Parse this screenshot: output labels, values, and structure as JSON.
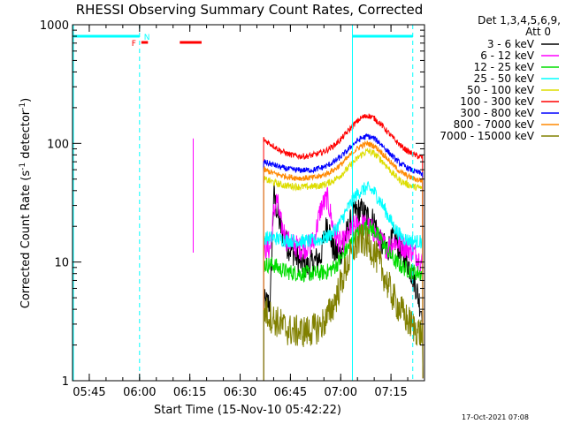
{
  "chart_data": {
    "type": "line",
    "title": "RHESSI Observing Summary Count Rates, Corrected",
    "xlabel": "Start Time (15-Nov-10 05:42:22)",
    "ylabel": "Corrected Count Rate (s",
    "ylabel_sup1": "-1",
    "ylabel_mid": " detector",
    "ylabel_sup2": "-1",
    "ylabel_end": ")",
    "yscale": "log",
    "ylim": [
      1,
      1000
    ],
    "xlim": [
      "05:40",
      "07:25"
    ],
    "x_ticks": [
      "05:45",
      "06:00",
      "06:15",
      "06:30",
      "06:45",
      "07:00",
      "07:15"
    ],
    "x_tick_minutes": [
      5,
      20,
      35,
      50,
      65,
      80,
      95
    ],
    "y_ticks": [
      "1",
      "10",
      "100",
      "1000"
    ],
    "y_tick_values": [
      1,
      10,
      100,
      1000
    ],
    "legend": {
      "header1": "Det 1,3,4,5,6,9,",
      "header2": "Att 0",
      "placement": "right",
      "entries": [
        {
          "label": "3 - 6 keV",
          "color": "#000000"
        },
        {
          "label": "6 - 12 keV",
          "color": "#ff00ff"
        },
        {
          "label": "12 - 25 keV",
          "color": "#00dd00"
        },
        {
          "label": "25 - 50 keV",
          "color": "#00ffff"
        },
        {
          "label": "50 - 100 keV",
          "color": "#dddd00"
        },
        {
          "label": "100 - 300 keV",
          "color": "#ff0000"
        },
        {
          "label": "300 - 800 keV",
          "color": "#0000ff"
        },
        {
          "label": "800 - 7000 keV",
          "color": "#ff8800"
        },
        {
          "label": "7000 - 15000 keV",
          "color": "#808000"
        }
      ]
    },
    "flags": {
      "F_label": "F",
      "N_label": "N",
      "flag_color": "#ff0000",
      "night_color": "#00ffff"
    },
    "series": [
      {
        "name": "3 - 6 keV",
        "color": "#000000",
        "x": [
          57.0,
          59,
          60,
          62,
          64,
          66,
          68,
          70,
          72,
          74,
          76,
          78,
          80,
          82,
          84,
          86,
          88,
          90,
          92,
          94,
          96,
          98,
          100,
          102,
          104
        ],
        "y": [
          4.5,
          4.5,
          37,
          20,
          14,
          12,
          10,
          9,
          10,
          11,
          22,
          12,
          12,
          18,
          26,
          27,
          24,
          22,
          14,
          13,
          16,
          12,
          10,
          7,
          4
        ]
      },
      {
        "name": "6 - 12 keV",
        "color": "#ff00ff",
        "x": [
          57.0,
          59,
          60,
          61,
          62,
          64,
          66,
          68,
          70,
          72,
          74,
          76,
          78,
          80,
          82,
          84,
          86,
          88,
          90,
          92,
          94,
          96,
          98,
          100,
          102,
          104
        ],
        "y": [
          13,
          13,
          26,
          34,
          22,
          15,
          14,
          13,
          13.5,
          15,
          28,
          35,
          18,
          14,
          16,
          20,
          21,
          20,
          18,
          15,
          13,
          15,
          14,
          13,
          12,
          10
        ]
      },
      {
        "name": "12 - 25 keV",
        "color": "#00dd00",
        "x": [
          57.0,
          60,
          62,
          64,
          66,
          68,
          70,
          72,
          74,
          76,
          78,
          80,
          82,
          84,
          86,
          88,
          90,
          92,
          94,
          96,
          98,
          100,
          102,
          104
        ],
        "y": [
          9.5,
          9.5,
          8.7,
          8.3,
          8.1,
          8.0,
          8.0,
          8.0,
          8.1,
          8.3,
          9.0,
          10.5,
          13,
          16,
          18.5,
          20,
          18.5,
          15.5,
          12.5,
          10.3,
          9.2,
          8.6,
          8.2,
          8.0
        ]
      },
      {
        "name": "25 - 50 keV",
        "color": "#00ffff",
        "x": [
          57.0,
          60,
          62,
          64,
          66,
          68,
          70,
          72,
          74,
          76,
          78,
          80,
          82,
          84,
          86,
          88,
          90,
          92,
          94,
          96,
          98,
          100,
          102,
          104
        ],
        "y": [
          16,
          16,
          15.5,
          15.3,
          15.1,
          15.0,
          15.0,
          15.1,
          15.5,
          16.3,
          18,
          22,
          28,
          35,
          40,
          42,
          39,
          32,
          25,
          19.5,
          16.5,
          15.3,
          15.0,
          14.8
        ]
      },
      {
        "name": "50 - 100 keV",
        "color": "#dddd00",
        "x": [
          57.0,
          60,
          62,
          64,
          66,
          68,
          70,
          72,
          74,
          76,
          78,
          80,
          82,
          84,
          86,
          88,
          90,
          92,
          94,
          96,
          98,
          100,
          102,
          104
        ],
        "y": [
          50,
          47,
          45,
          44,
          43.5,
          43,
          43,
          43.5,
          44,
          46,
          49,
          54,
          61,
          70,
          80,
          86,
          82,
          73,
          63,
          54,
          48,
          45,
          43,
          42
        ]
      },
      {
        "name": "100 - 300 keV",
        "color": "#ff0000",
        "x": [
          57.0,
          60,
          62,
          64,
          66,
          68,
          70,
          72,
          74,
          76,
          78,
          80,
          82,
          84,
          86,
          88,
          90,
          92,
          94,
          96,
          98,
          100,
          102,
          104
        ],
        "y": [
          108,
          95,
          87,
          82,
          79,
          78,
          78,
          80,
          83,
          88,
          96,
          108,
          125,
          145,
          163,
          172,
          163,
          145,
          125,
          108,
          95,
          86,
          80,
          76
        ]
      },
      {
        "name": "300 - 800 keV",
        "color": "#0000ff",
        "x": [
          57.0,
          60,
          62,
          64,
          66,
          68,
          70,
          72,
          74,
          76,
          78,
          80,
          82,
          84,
          86,
          88,
          90,
          92,
          94,
          96,
          98,
          100,
          102,
          104
        ],
        "y": [
          70,
          66,
          63,
          61,
          60,
          59.5,
          59.5,
          60,
          62,
          65,
          70,
          77,
          87,
          100,
          110,
          115,
          110,
          99,
          86,
          75,
          67,
          62,
          58,
          56
        ]
      },
      {
        "name": "800 - 7000 keV",
        "color": "#ff8800",
        "x": [
          57.0,
          60,
          62,
          64,
          66,
          68,
          70,
          72,
          74,
          76,
          78,
          80,
          82,
          84,
          86,
          88,
          90,
          92,
          94,
          96,
          98,
          100,
          102,
          104
        ],
        "y": [
          60,
          56,
          54,
          52.5,
          51.5,
          51,
          51,
          51.5,
          53,
          56,
          60,
          66,
          75,
          86,
          95,
          100,
          95,
          85,
          74,
          64,
          57,
          53,
          50,
          49
        ]
      },
      {
        "name": "7000 - 15000 keV",
        "color": "#808000",
        "x": [
          57.0,
          59,
          60,
          62,
          64,
          66,
          68,
          70,
          72,
          74,
          76,
          78,
          80,
          82,
          84,
          86,
          88,
          90,
          92,
          94,
          96,
          98,
          100,
          102,
          104
        ],
        "y": [
          4.0,
          3.5,
          3.3,
          3.0,
          2.7,
          2.6,
          2.6,
          2.6,
          2.7,
          2.9,
          3.4,
          4.5,
          6.5,
          9.5,
          13,
          15.5,
          14.5,
          12,
          9,
          6.5,
          4.8,
          3.9,
          3.2,
          2.8,
          2.5
        ]
      }
    ]
  },
  "footer": {
    "timestamp": "17-Oct-2021 07:08"
  }
}
